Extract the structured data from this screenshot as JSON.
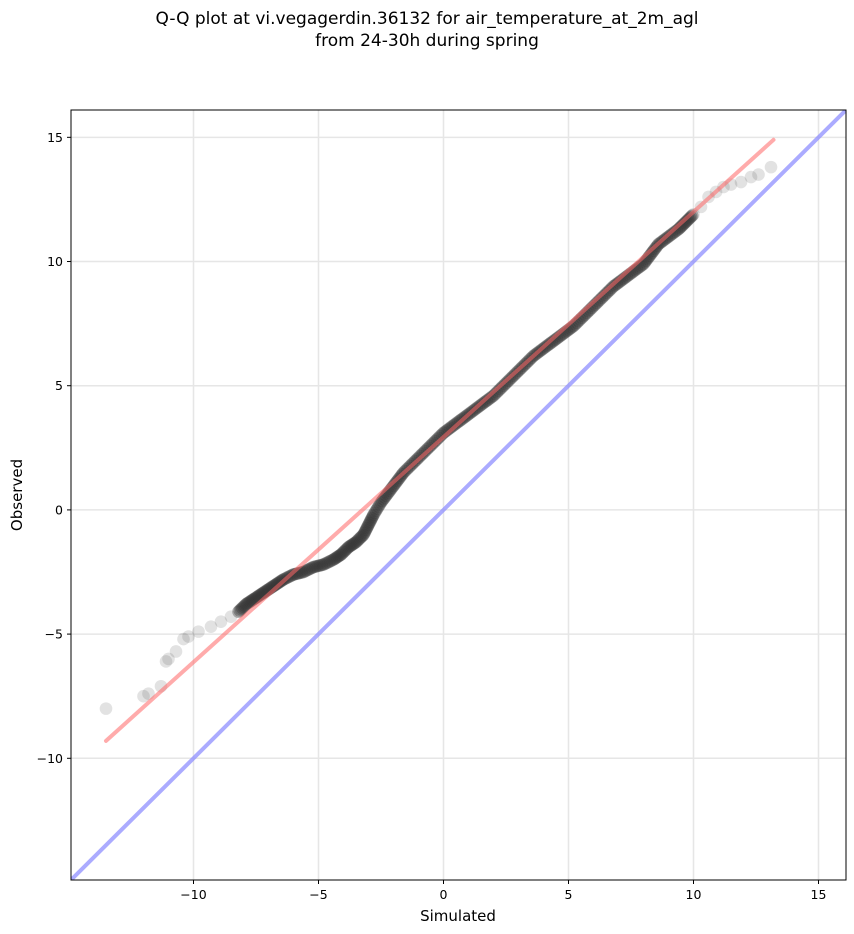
{
  "chart_data": {
    "type": "scatter",
    "title": "Q-Q plot at vi.vegagerdin.36132 for air_temperature_at_2m_agl",
    "subtitle": "from 24-30h during spring",
    "xlabel": "Simulated",
    "ylabel": "Observed",
    "xlim": [
      -14.9,
      16.1
    ],
    "ylim": [
      -14.9,
      16.1
    ],
    "x_ticks": [
      -10,
      -5,
      0,
      5,
      10,
      15
    ],
    "y_ticks": [
      -10,
      -5,
      0,
      5,
      10,
      15
    ],
    "x_tick_labels": [
      "−10",
      "−5",
      "0",
      "5",
      "10",
      "15"
    ],
    "y_tick_labels": [
      "−10",
      "−5",
      "0",
      "5",
      "10",
      "15"
    ],
    "grid": true,
    "point_color": "#333333",
    "fit_line": {
      "color": "#ff6666",
      "x": [
        -13.5,
        13.2
      ],
      "y": [
        -9.3,
        14.9
      ]
    },
    "identity_line": {
      "color": "#8888ff",
      "x": [
        -14.9,
        16.1
      ],
      "y": [
        -14.9,
        16.1
      ]
    },
    "quantile_points": [
      [
        -13.5,
        -8.0
      ],
      [
        -12.0,
        -7.5
      ],
      [
        -11.8,
        -7.4
      ],
      [
        -11.3,
        -7.1
      ],
      [
        -11.1,
        -6.1
      ],
      [
        -11.0,
        -6.0
      ],
      [
        -10.7,
        -5.7
      ],
      [
        -10.4,
        -5.2
      ],
      [
        -10.2,
        -5.1
      ],
      [
        -9.8,
        -4.9
      ],
      [
        -9.3,
        -4.7
      ],
      [
        -8.9,
        -4.5
      ],
      [
        -8.5,
        -4.3
      ],
      [
        -8.2,
        -4.1
      ],
      [
        -7.9,
        -3.8
      ],
      [
        -7.6,
        -3.6
      ],
      [
        -7.3,
        -3.4
      ],
      [
        -7.0,
        -3.2
      ],
      [
        -6.7,
        -3.0
      ],
      [
        -6.4,
        -2.8
      ],
      [
        -6.0,
        -2.6
      ],
      [
        -5.6,
        -2.5
      ],
      [
        -5.2,
        -2.3
      ],
      [
        -4.8,
        -2.2
      ],
      [
        -4.4,
        -2.0
      ],
      [
        -4.1,
        -1.8
      ],
      [
        -3.8,
        -1.5
      ],
      [
        -3.5,
        -1.3
      ],
      [
        -3.2,
        -1.0
      ],
      [
        -3.0,
        -0.6
      ],
      [
        -2.8,
        -0.2
      ],
      [
        -2.5,
        0.3
      ],
      [
        -2.2,
        0.7
      ],
      [
        -1.9,
        1.1
      ],
      [
        -1.6,
        1.5
      ],
      [
        -1.2,
        1.9
      ],
      [
        -0.8,
        2.3
      ],
      [
        -0.4,
        2.7
      ],
      [
        0.0,
        3.1
      ],
      [
        0.4,
        3.4
      ],
      [
        0.8,
        3.7
      ],
      [
        1.2,
        4.0
      ],
      [
        1.6,
        4.3
      ],
      [
        2.0,
        4.6
      ],
      [
        2.4,
        5.0
      ],
      [
        2.8,
        5.4
      ],
      [
        3.2,
        5.8
      ],
      [
        3.6,
        6.2
      ],
      [
        4.0,
        6.5
      ],
      [
        4.4,
        6.8
      ],
      [
        4.8,
        7.1
      ],
      [
        5.2,
        7.4
      ],
      [
        5.6,
        7.8
      ],
      [
        6.0,
        8.2
      ],
      [
        6.4,
        8.6
      ],
      [
        6.8,
        9.0
      ],
      [
        7.2,
        9.3
      ],
      [
        7.6,
        9.6
      ],
      [
        8.0,
        9.9
      ],
      [
        8.3,
        10.3
      ],
      [
        8.6,
        10.7
      ],
      [
        9.0,
        11.0
      ],
      [
        9.4,
        11.3
      ],
      [
        9.7,
        11.6
      ],
      [
        10.0,
        11.9
      ],
      [
        10.3,
        12.2
      ],
      [
        10.6,
        12.6
      ],
      [
        10.9,
        12.8
      ],
      [
        11.2,
        13.0
      ],
      [
        11.5,
        13.1
      ],
      [
        11.9,
        13.2
      ],
      [
        12.3,
        13.4
      ],
      [
        12.6,
        13.5
      ],
      [
        13.1,
        13.8
      ]
    ]
  }
}
